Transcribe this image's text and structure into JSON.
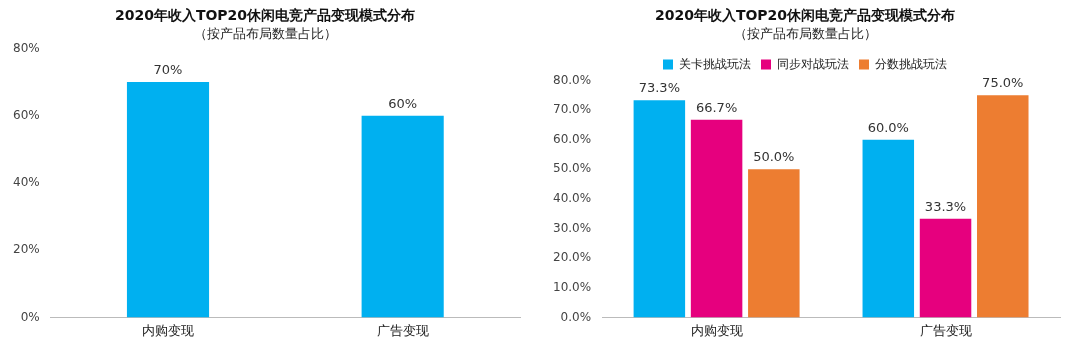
{
  "chart_data": [
    {
      "type": "bar",
      "title": "2020年收入TOP20休闲电竞产品变现模式分布",
      "subtitle": "（按产品布局数量占比）",
      "categories": [
        "内购变现",
        "广告变现"
      ],
      "values": [
        70,
        60
      ],
      "value_labels": [
        "70%",
        "60%"
      ],
      "color": "#00b0f0",
      "ylim": [
        0,
        80
      ],
      "yticks": [
        {
          "value": 0,
          "label": "0%"
        },
        {
          "value": 20,
          "label": "20%"
        },
        {
          "value": 40,
          "label": "40%"
        },
        {
          "value": 60,
          "label": "60%"
        },
        {
          "value": 80,
          "label": "80%"
        }
      ],
      "grid": false,
      "legend": false
    },
    {
      "type": "bar",
      "title": "2020年收入TOP20休闲电竞产品变现模式分布",
      "subtitle": "（按产品布局数量占比）",
      "categories": [
        "内购变现",
        "广告变现"
      ],
      "series": [
        {
          "name": "关卡挑战玩法",
          "color": "#00b0f0",
          "values": [
            73.3,
            60.0
          ],
          "value_labels": [
            "73.3%",
            "60.0%"
          ]
        },
        {
          "name": "同步对战玩法",
          "color": "#e6007e",
          "values": [
            66.7,
            33.3
          ],
          "value_labels": [
            "66.7%",
            "33.3%"
          ]
        },
        {
          "name": "分数挑战玩法",
          "color": "#ed7d31",
          "values": [
            50.0,
            75.0
          ],
          "value_labels": [
            "50.0%",
            "75.0%"
          ]
        }
      ],
      "ylim": [
        0,
        80
      ],
      "yticks": [
        {
          "value": 0,
          "label": "0.0%"
        },
        {
          "value": 10,
          "label": "10.0%"
        },
        {
          "value": 20,
          "label": "20.0%"
        },
        {
          "value": 30,
          "label": "30.0%"
        },
        {
          "value": 40,
          "label": "40.0%"
        },
        {
          "value": 50,
          "label": "50.0%"
        },
        {
          "value": 60,
          "label": "60.0%"
        },
        {
          "value": 70,
          "label": "70.0%"
        },
        {
          "value": 80,
          "label": "80.0%"
        }
      ],
      "grid": false,
      "legend": "top"
    }
  ]
}
